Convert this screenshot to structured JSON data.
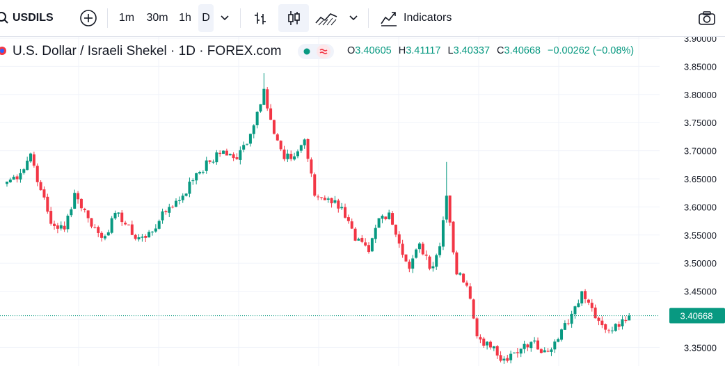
{
  "toolbar": {
    "symbol": "USDILS",
    "intervals": [
      "1m",
      "30m",
      "1h",
      "D"
    ],
    "active_interval": "D",
    "indicators_label": "Indicators",
    "icons": [
      "search-icon",
      "add-symbol-icon",
      "chevron-down-icon",
      "bar-style-icon",
      "candle-style-icon",
      "area-style-icon",
      "chevron-down-icon",
      "indicators-icon",
      "camera-icon"
    ]
  },
  "legend": {
    "title": "U.S. Dollar / Israeli Shekel · 1D · FOREX.com",
    "o_label": "O",
    "o_value": "3.40605",
    "h_label": "H",
    "h_value": "3.41117",
    "l_label": "L",
    "l_value": "3.40337",
    "c_label": "C",
    "c_value": "3.40668",
    "change": "−0.00262 (−0.08%)"
  },
  "price_axis": {
    "ticks": [
      "3.90000",
      "3.85000",
      "3.80000",
      "3.75000",
      "3.70000",
      "3.65000",
      "3.60000",
      "3.55000",
      "3.50000",
      "3.45000",
      "3.40000",
      "3.35000"
    ],
    "current_price_label": "3.40668"
  },
  "colors": {
    "up": "#089981",
    "down": "#f23645",
    "accent": "#2962ff",
    "grid": "#f0f3fa",
    "text": "#131722"
  },
  "chart_data": {
    "type": "candlestick",
    "symbol": "USDILS",
    "ylim": [
      3.33,
      3.905
    ],
    "last_price": 3.40668,
    "keypoints_close": [
      [
        0,
        3.645
      ],
      [
        4,
        3.66
      ],
      [
        7,
        3.695
      ],
      [
        10,
        3.63
      ],
      [
        13,
        3.57
      ],
      [
        17,
        3.56
      ],
      [
        20,
        3.625
      ],
      [
        24,
        3.58
      ],
      [
        28,
        3.545
      ],
      [
        33,
        3.59
      ],
      [
        37,
        3.55
      ],
      [
        41,
        3.545
      ],
      [
        45,
        3.575
      ],
      [
        48,
        3.6
      ],
      [
        52,
        3.62
      ],
      [
        56,
        3.66
      ],
      [
        60,
        3.68
      ],
      [
        64,
        3.7
      ],
      [
        68,
        3.685
      ],
      [
        72,
        3.73
      ],
      [
        76,
        3.81
      ],
      [
        79,
        3.73
      ],
      [
        82,
        3.685
      ],
      [
        85,
        3.69
      ],
      [
        88,
        3.72
      ],
      [
        91,
        3.62
      ],
      [
        95,
        3.615
      ],
      [
        99,
        3.6
      ],
      [
        103,
        3.54
      ],
      [
        107,
        3.52
      ],
      [
        110,
        3.58
      ],
      [
        113,
        3.59
      ],
      [
        116,
        3.535
      ],
      [
        119,
        3.49
      ],
      [
        122,
        3.535
      ],
      [
        125,
        3.49
      ],
      [
        128,
        3.53
      ],
      [
        130,
        3.62
      ],
      [
        133,
        3.48
      ],
      [
        136,
        3.46
      ],
      [
        139,
        3.37
      ],
      [
        143,
        3.35
      ],
      [
        147,
        3.33
      ],
      [
        151,
        3.34
      ],
      [
        155,
        3.36
      ],
      [
        159,
        3.345
      ],
      [
        163,
        3.365
      ],
      [
        167,
        3.41
      ],
      [
        170,
        3.45
      ],
      [
        173,
        3.42
      ],
      [
        176,
        3.39
      ],
      [
        179,
        3.38
      ],
      [
        182,
        3.4
      ],
      [
        184,
        3.40668
      ]
    ]
  }
}
